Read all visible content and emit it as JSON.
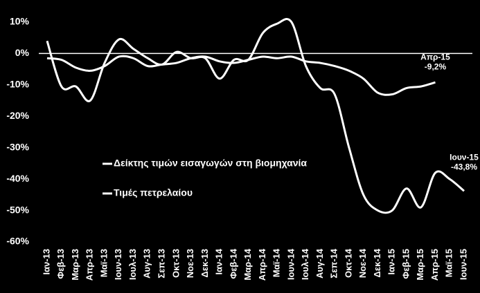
{
  "chart_data": {
    "type": "line",
    "categories": [
      "Ιαν-13",
      "Φεβ-13",
      "Μαρ-13",
      "Απρ-13",
      "Μαϊ-13",
      "Ιουν-13",
      "Ιουλ-13",
      "Αυγ-13",
      "Σεπ-13",
      "Οκτ-13",
      "Νοε-13",
      "Δεκ-13",
      "Ιαν-14",
      "Φεβ-14",
      "Μαρ-14",
      "Απρ-14",
      "Μαϊ-14",
      "Ιουν-14",
      "Ιουλ-14",
      "Αυγ-14",
      "Σεπ-14",
      "Οκτ-14",
      "Νοε-14",
      "Δεκ-14",
      "Ιαν-15",
      "Φεβ-15",
      "Μαρ-15",
      "Απρ-15",
      "Μαϊ-15",
      "Ιουν-15"
    ],
    "series": [
      {
        "name": "Δείκτης τιμών εισαγωγών στη βιομηχανία",
        "color": "#ffffff",
        "annotation": "Απρ-15",
        "values": [
          -1.5,
          -2,
          -4.5,
          -5.5,
          -4,
          -1,
          -1.5,
          -4,
          -3.5,
          -3,
          -1.5,
          -1,
          -2.5,
          -3,
          -2,
          -1,
          -1.5,
          -1,
          -2.5,
          -3,
          -4,
          -5.5,
          -8,
          -12.5,
          -13,
          -11,
          -10.5,
          -9.2,
          null,
          null
        ],
        "value_labels": [
          null,
          null,
          null,
          null,
          null,
          null,
          null,
          null,
          null,
          null,
          null,
          null,
          null,
          null,
          null,
          null,
          null,
          null,
          null,
          null,
          null,
          null,
          null,
          null,
          null,
          null,
          null,
          "-9,2%",
          null,
          null
        ]
      },
      {
        "name": "Τιμές πετρελαίου",
        "color": "#ffffff",
        "annotation": "Ιουν-15",
        "values": [
          4,
          -10.5,
          -10.5,
          -15,
          -3,
          4.5,
          1.5,
          -1.5,
          -3.5,
          0.5,
          -1.5,
          -1.5,
          -8,
          -2,
          -2,
          6.5,
          9.5,
          10,
          -4,
          -11,
          -13,
          -30,
          -45,
          -50,
          -50,
          -43,
          -49,
          -38,
          -40,
          -43.8
        ],
        "value_labels": [
          null,
          null,
          null,
          null,
          null,
          null,
          null,
          null,
          null,
          null,
          null,
          null,
          null,
          null,
          null,
          null,
          null,
          null,
          null,
          null,
          null,
          null,
          null,
          null,
          null,
          null,
          null,
          null,
          null,
          "-43,8%"
        ]
      }
    ],
    "ylim": [
      -60,
      10
    ],
    "yticks": [
      {
        "value": -60,
        "label": "-60%"
      },
      {
        "value": -50,
        "label": "-50%"
      },
      {
        "value": -40,
        "label": "-40%"
      },
      {
        "value": -30,
        "label": "-30%"
      },
      {
        "value": -20,
        "label": "-20%"
      },
      {
        "value": -10,
        "label": "-10%"
      },
      {
        "value": 0,
        "label": "0%"
      },
      {
        "value": 10,
        "label": "10%"
      }
    ],
    "grid": false,
    "legend": "center-left",
    "background": "#000000"
  }
}
